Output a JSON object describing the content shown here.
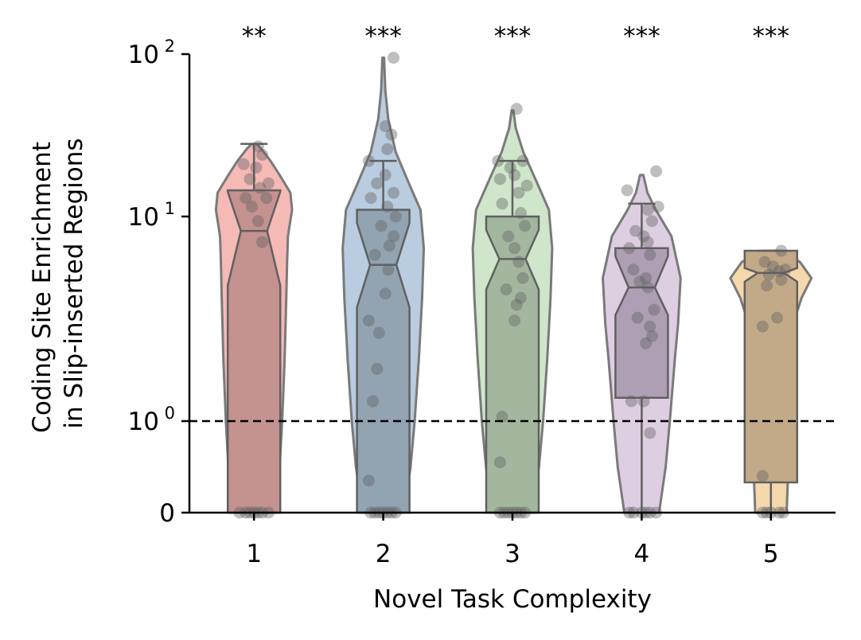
{
  "chart_data": {
    "type": "violin",
    "xlabel": "Novel Task Complexity",
    "ylabel_line1": "Coding Site Enrichment",
    "ylabel_line2": "in Slip-inserted Regions",
    "yscale": "symlog",
    "ylim": [
      0,
      100
    ],
    "yticks": [
      {
        "value": 0,
        "label": "0"
      },
      {
        "value": 1,
        "label": "10",
        "exp": "0"
      },
      {
        "value": 10,
        "label": "10",
        "exp": "1"
      },
      {
        "value": 100,
        "label": "10",
        "exp": "2"
      }
    ],
    "reference_line": 1,
    "categories": [
      "1",
      "2",
      "3",
      "4",
      "5"
    ],
    "significance": [
      "**",
      "***",
      "***",
      "***",
      "***"
    ],
    "colors": [
      "#f4b6b2",
      "#b5c9de",
      "#cce5c8",
      "#dccbe0",
      "#f5d6a9"
    ],
    "box_colors": [
      "#c4928f",
      "#92a3b2",
      "#a3b79f",
      "#ae9fb4",
      "#c2aa88"
    ],
    "boxes": [
      {
        "whisker_low": 0,
        "q1": 0,
        "median": 8.5,
        "notch_low": 4.6,
        "notch_high": 14.2,
        "q3": 14.5,
        "whisker_high": 28
      },
      {
        "whisker_low": 0,
        "q1": 0,
        "median": 5.8,
        "notch_low": 3.6,
        "notch_high": 9.3,
        "q3": 11,
        "whisker_high": 22
      },
      {
        "whisker_low": 0,
        "q1": 0,
        "median": 6.2,
        "notch_low": 4.4,
        "notch_high": 8.6,
        "q3": 10,
        "whisker_high": 22
      },
      {
        "whisker_low": 0,
        "q1": 1.3,
        "median": 4.5,
        "notch_low": 3.3,
        "notch_high": 6.4,
        "q3": 7,
        "whisker_high": 12
      },
      {
        "whisker_low": 0,
        "q1": 0.33,
        "median": 5.3,
        "notch_low": 4.8,
        "notch_high": 5.6,
        "q3": 6.8,
        "whisker_high": 6.8
      }
    ],
    "violins": [
      {
        "min": 0,
        "max": 28,
        "profile": [
          [
            0,
            0.55
          ],
          [
            0.5,
            0.62
          ],
          [
            1,
            0.68
          ],
          [
            2,
            0.74
          ],
          [
            4,
            0.78
          ],
          [
            6,
            0.8
          ],
          [
            8,
            0.82
          ],
          [
            11,
            0.92
          ],
          [
            14,
            0.88
          ],
          [
            18,
            0.62
          ],
          [
            22,
            0.4
          ],
          [
            26,
            0.18
          ],
          [
            28,
            0.06
          ]
        ]
      },
      {
        "min": 0,
        "max": 95,
        "profile": [
          [
            0,
            0.5
          ],
          [
            0.5,
            0.66
          ],
          [
            1,
            0.76
          ],
          [
            2,
            0.86
          ],
          [
            4,
            0.94
          ],
          [
            7,
            0.98
          ],
          [
            11,
            0.9
          ],
          [
            16,
            0.62
          ],
          [
            25,
            0.3
          ],
          [
            40,
            0.12
          ],
          [
            60,
            0.05
          ],
          [
            95,
            0.02
          ]
        ]
      },
      {
        "min": 0,
        "max": 45,
        "profile": [
          [
            0,
            0.48
          ],
          [
            0.5,
            0.64
          ],
          [
            1,
            0.74
          ],
          [
            2,
            0.84
          ],
          [
            4,
            0.92
          ],
          [
            7,
            0.96
          ],
          [
            11,
            0.88
          ],
          [
            16,
            0.6
          ],
          [
            25,
            0.26
          ],
          [
            35,
            0.08
          ],
          [
            45,
            0.02
          ]
        ]
      },
      {
        "min": 0,
        "max": 18,
        "profile": [
          [
            0,
            0.42
          ],
          [
            0.5,
            0.58
          ],
          [
            1,
            0.68
          ],
          [
            2,
            0.8
          ],
          [
            3,
            0.88
          ],
          [
            5,
            0.94
          ],
          [
            8,
            0.72
          ],
          [
            11,
            0.34
          ],
          [
            14,
            0.14
          ],
          [
            18,
            0.04
          ]
        ]
      },
      {
        "min": 0,
        "max": 6.8,
        "profile": [
          [
            0,
            0.38
          ],
          [
            0.5,
            0.42
          ],
          [
            1,
            0.46
          ],
          [
            2,
            0.5
          ],
          [
            3,
            0.54
          ],
          [
            4,
            0.74
          ],
          [
            5,
            0.98
          ],
          [
            6,
            0.7
          ],
          [
            6.5,
            0.4
          ],
          [
            6.8,
            0.2
          ]
        ]
      }
    ],
    "points": [
      [
        [
          0,
          0
        ],
        [
          0.1,
          0
        ],
        [
          0.2,
          0
        ],
        [
          -0.1,
          0
        ],
        [
          -0.2,
          0
        ],
        [
          0.35,
          0
        ],
        [
          -0.35,
          0
        ],
        [
          0.2,
          7.5
        ],
        [
          0.1,
          9.5
        ],
        [
          -0.05,
          11.5
        ],
        [
          0.3,
          13
        ],
        [
          -0.2,
          13
        ],
        [
          0.15,
          15
        ],
        [
          -0.1,
          17
        ],
        [
          0.05,
          20
        ],
        [
          -0.25,
          21
        ],
        [
          0.35,
          16
        ],
        [
          0.2,
          24
        ],
        [
          0.1,
          27
        ]
      ],
      [
        [
          0,
          0
        ],
        [
          0.1,
          0
        ],
        [
          0.2,
          0
        ],
        [
          -0.1,
          0
        ],
        [
          -0.2,
          0
        ],
        [
          0.3,
          0
        ],
        [
          -0.3,
          0
        ],
        [
          -0.35,
          0.35
        ],
        [
          -0.25,
          1.25
        ],
        [
          -0.1,
          2.7
        ],
        [
          -0.15,
          1.8
        ],
        [
          -0.35,
          3.1
        ],
        [
          0.05,
          4.2
        ],
        [
          0.12,
          5.5
        ],
        [
          -0.2,
          6.5
        ],
        [
          0.15,
          7.2
        ],
        [
          0.25,
          8
        ],
        [
          -0.05,
          9
        ],
        [
          0.3,
          10
        ],
        [
          0.1,
          11.5
        ],
        [
          -0.3,
          13
        ],
        [
          0.25,
          14
        ],
        [
          -0.15,
          16
        ],
        [
          0.05,
          18
        ],
        [
          -0.35,
          22
        ],
        [
          0.1,
          26
        ],
        [
          0.2,
          32
        ],
        [
          0.05,
          36
        ],
        [
          0.25,
          95
        ]
      ],
      [
        [
          0,
          0
        ],
        [
          0.1,
          0
        ],
        [
          -0.1,
          0
        ],
        [
          -0.2,
          0
        ],
        [
          0.2,
          0
        ],
        [
          0.3,
          0
        ],
        [
          -0.3,
          0
        ],
        [
          -0.3,
          0.55
        ],
        [
          -0.25,
          1.05
        ],
        [
          0.05,
          3.1
        ],
        [
          0.1,
          3.7
        ],
        [
          0.2,
          4
        ],
        [
          -0.15,
          4.4
        ],
        [
          0.25,
          5
        ],
        [
          0.15,
          6
        ],
        [
          0.05,
          7
        ],
        [
          -0.1,
          8
        ],
        [
          0.3,
          9
        ],
        [
          0.2,
          10.5
        ],
        [
          -0.25,
          12
        ],
        [
          0.15,
          14
        ],
        [
          0.35,
          15.5
        ],
        [
          -0.3,
          17
        ],
        [
          0.05,
          18
        ],
        [
          -0.05,
          20
        ],
        [
          0.25,
          22
        ],
        [
          -0.35,
          22
        ],
        [
          0.1,
          46
        ]
      ],
      [
        [
          0,
          0
        ],
        [
          0.1,
          0
        ],
        [
          0.2,
          0
        ],
        [
          -0.2,
          0
        ],
        [
          -0.3,
          0
        ],
        [
          0.35,
          0
        ],
        [
          0.2,
          0.87
        ],
        [
          0.05,
          1.25
        ],
        [
          -0.25,
          1.25
        ],
        [
          0.1,
          2.4
        ],
        [
          0.25,
          2.6
        ],
        [
          0.2,
          2.9
        ],
        [
          -0.1,
          3.2
        ],
        [
          0.3,
          3.5
        ],
        [
          0.15,
          4.5
        ],
        [
          -0.05,
          4.8
        ],
        [
          0.1,
          5
        ],
        [
          -0.2,
          5.5
        ],
        [
          0.2,
          6.5
        ],
        [
          -0.3,
          7
        ],
        [
          0.15,
          7.5
        ],
        [
          0.05,
          8
        ],
        [
          -0.15,
          8.5
        ],
        [
          0.25,
          9.5
        ],
        [
          0.15,
          11
        ],
        [
          0.4,
          11.5
        ],
        [
          -0.35,
          14.5
        ],
        [
          0.35,
          19
        ]
      ],
      [
        [
          0,
          0
        ],
        [
          -0.1,
          0
        ],
        [
          0.2,
          0
        ],
        [
          0.3,
          0
        ],
        [
          -0.2,
          0
        ],
        [
          -0.2,
          0.4
        ],
        [
          -0.2,
          2.9
        ],
        [
          0.15,
          3.2
        ],
        [
          -0.1,
          4.6
        ],
        [
          0.25,
          4.9
        ],
        [
          -0.05,
          5.2
        ],
        [
          0.2,
          5.4
        ],
        [
          0.35,
          5.5
        ],
        [
          0.05,
          5.7
        ],
        [
          -0.15,
          6
        ],
        [
          0.25,
          6.8
        ]
      ]
    ]
  }
}
